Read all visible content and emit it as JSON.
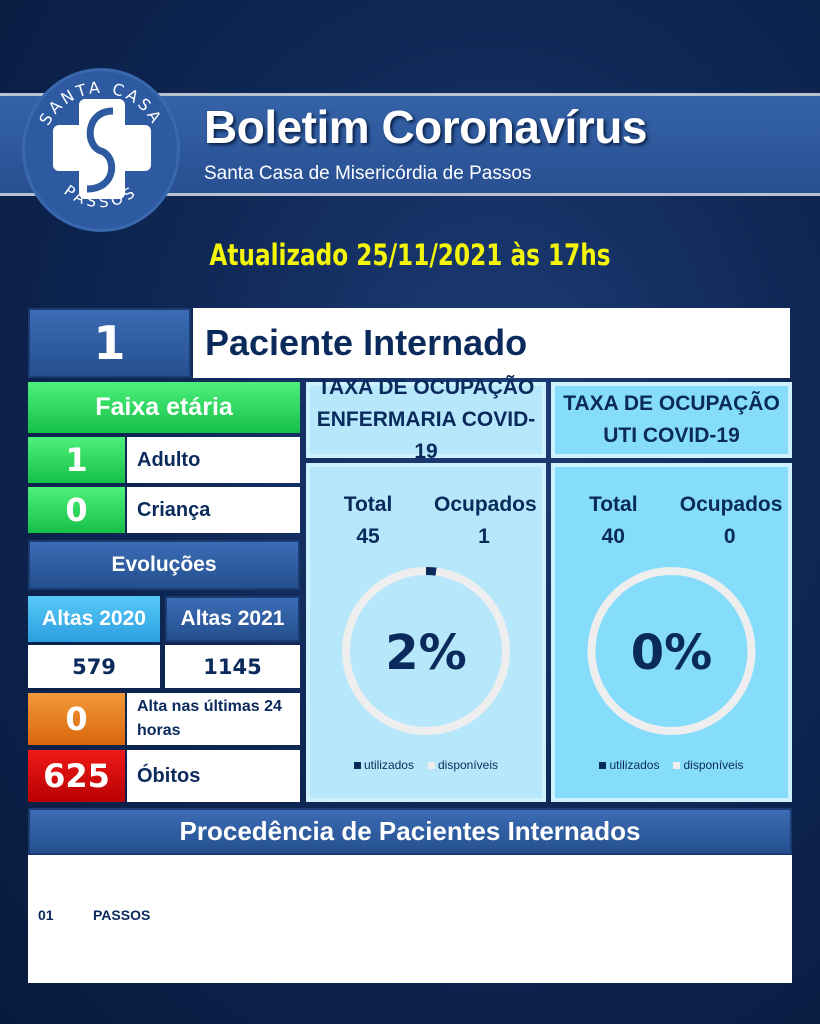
{
  "logo": {
    "top_text": "SANTA CASA",
    "bottom_text": "PASSOS"
  },
  "header": {
    "title": "Boletim Coronavírus",
    "subtitle": "Santa Casa de Misericórdia de Passos",
    "updated": "Atualizado 25/11/2021 às 17hs"
  },
  "patients": {
    "count": "1",
    "label": "Paciente Internado"
  },
  "age": {
    "title": "Faixa etária",
    "adult_count": "1",
    "adult_label": "Adulto",
    "child_count": "0",
    "child_label": "Criança"
  },
  "evolutions": {
    "title": "Evoluções",
    "altas_2020_label": "Altas 2020",
    "altas_2020": "579",
    "altas_2021_label": "Altas 2021",
    "altas_2021": "1145",
    "alta_24h": "0",
    "alta_24h_label": "Alta nas últimas 24 horas",
    "obitos": "625",
    "obitos_label": "Óbitos"
  },
  "ward": {
    "title1": "TAXA DE OCUPAÇÃO",
    "title2": "ENFERMARIA COVID-19",
    "total_label": "Total",
    "total": "45",
    "occupied_label": "Ocupados",
    "occupied": "1",
    "percent": "2%",
    "fraction": 0.02
  },
  "icu": {
    "title1": "TAXA DE OCUPAÇÃO",
    "title2": "UTI COVID-19",
    "total_label": "Total",
    "total": "40",
    "occupied_label": "Ocupados",
    "occupied": "0",
    "percent": "0%",
    "fraction": 0
  },
  "legend": {
    "used": "utilizados",
    "available": "disponíveis",
    "used_color": "#0b2a5c",
    "available_color": "#eeeeee"
  },
  "origin": {
    "title": "Procedência de Pacientes Internados",
    "rows": [
      {
        "count": "01",
        "city": "PASSOS"
      }
    ]
  }
}
